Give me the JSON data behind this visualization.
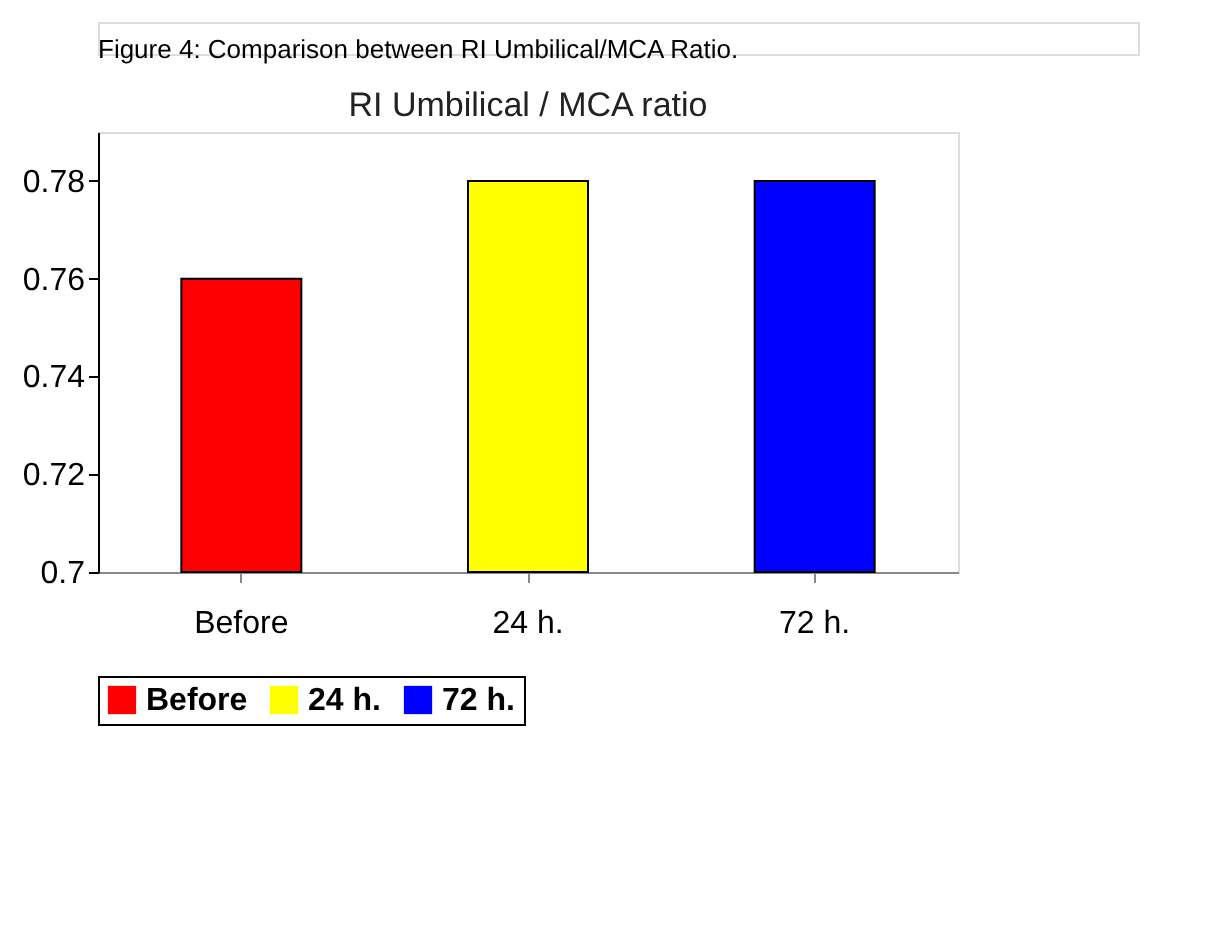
{
  "chart_data": {
    "type": "bar",
    "title": "RI Umbilical  / MCA ratio",
    "annotations": [
      "Figure 4: Comparison between RI Umbilical/MCA Ratio."
    ],
    "categories": [
      "Before",
      "24 h.",
      "72 h."
    ],
    "series": [
      {
        "name": "Before",
        "color": "#ff0000",
        "values": [
          0.76,
          null,
          null
        ]
      },
      {
        "name": "24 h.",
        "color": "#ffff00",
        "values": [
          null,
          0.78,
          null
        ]
      },
      {
        "name": "72 h.",
        "color": "#0000ff",
        "values": [
          null,
          null,
          0.78
        ]
      }
    ],
    "ylim": [
      0.7,
      0.79
    ],
    "yticks": [
      0.7,
      0.72,
      0.74,
      0.76,
      0.78
    ],
    "grid": false,
    "legend": "bottom"
  }
}
